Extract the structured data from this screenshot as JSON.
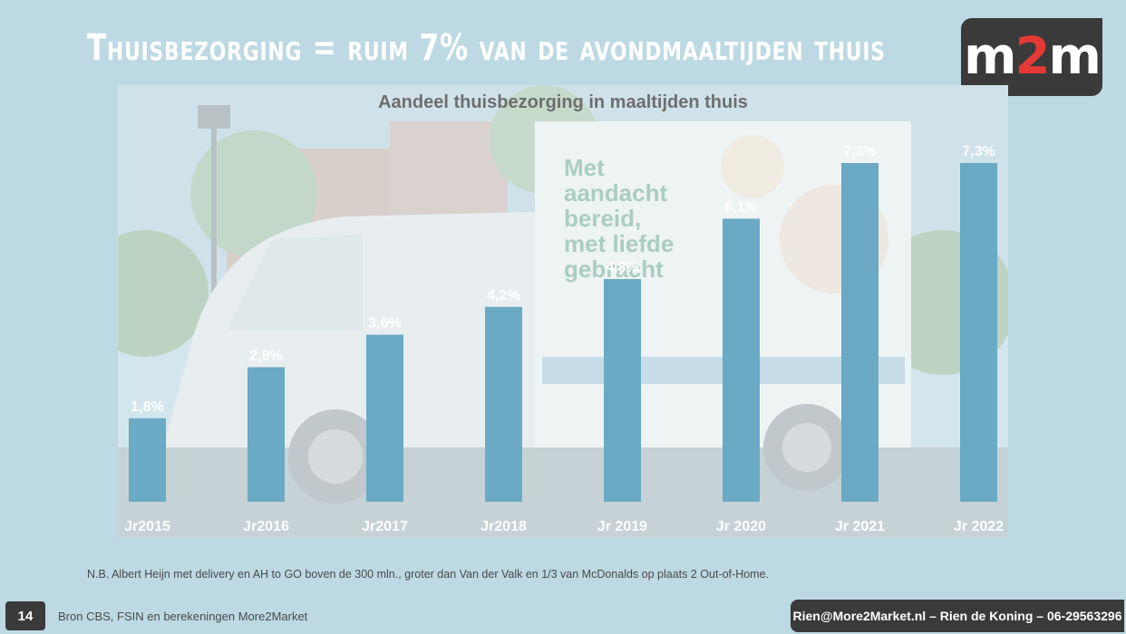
{
  "slide": {
    "title": "Thuisbezorging = ruim 7% van de avondmaaltijden thuis",
    "logo": {
      "left": "m",
      "accent": "2",
      "right": "m"
    },
    "note": "N.B. Albert Heijn met delivery en AH to GO boven de 300 mln., groter dan Van der Valk en 1/3 van McDonalds op plaats 2 Out-of-Home.",
    "page_number": "14",
    "source": "Bron CBS, FSIN en berekeningen More2Market",
    "contact": "Rien@More2Market.nl – Rien de Koning – 06-29563296"
  },
  "chart_data": {
    "type": "bar",
    "title": "Aandeel thuisbezorging in maaltijden thuis",
    "xlabel": "",
    "ylabel": "",
    "categories": [
      "Jr2015",
      "Jr2016",
      "Jr2017",
      "Jr2018",
      "Jr 2019",
      "Jr 2020",
      "Jr 2021",
      "Jr 2022"
    ],
    "values": [
      1.8,
      2.9,
      3.6,
      4.2,
      4.8,
      6.1,
      7.3,
      7.3
    ],
    "value_labels": [
      "1,8%",
      "2,9%",
      "3,6%",
      "4,2%",
      "4,8%",
      "6,1%",
      "7,3%",
      "7,3%"
    ],
    "ylim": [
      0,
      7.3
    ],
    "grid": false,
    "legend": "none",
    "bar_color": "#6aaac4"
  }
}
